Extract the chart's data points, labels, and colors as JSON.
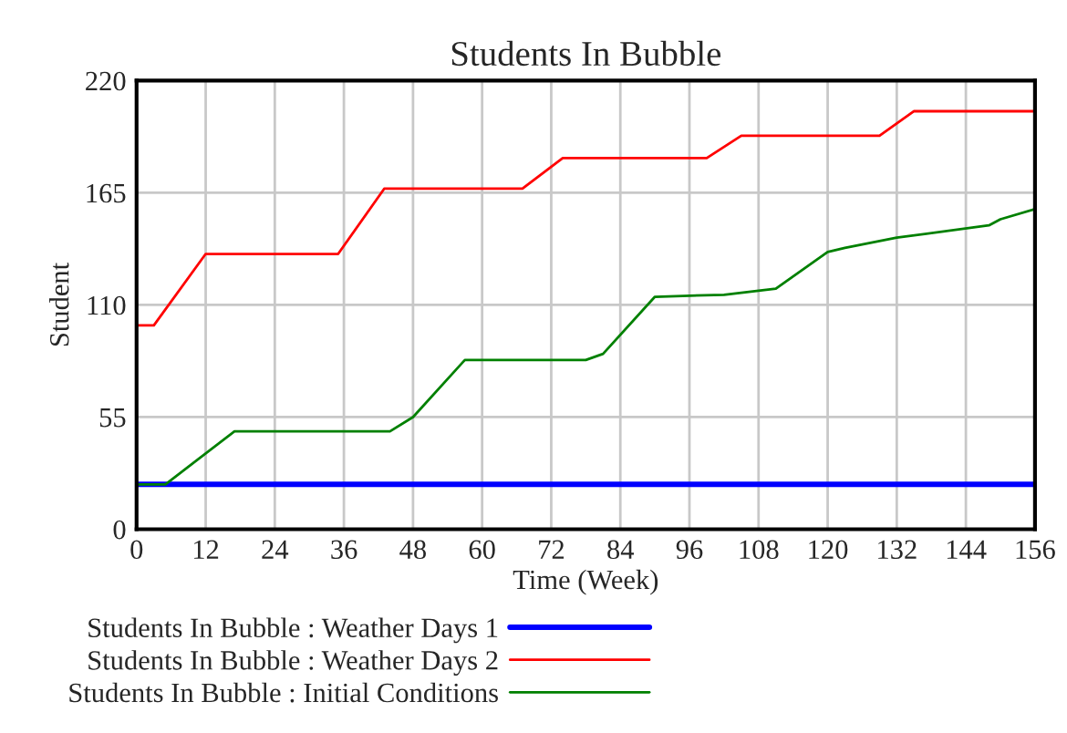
{
  "chart_data": {
    "type": "line",
    "title": "Students In Bubble",
    "xlabel": "Time (Week)",
    "ylabel": "Student",
    "xlim": [
      0,
      156
    ],
    "xticks": [
      0,
      12,
      24,
      36,
      48,
      60,
      72,
      84,
      96,
      108,
      120,
      132,
      144,
      156
    ],
    "ylim": [
      0,
      220
    ],
    "yticks": [
      0,
      55,
      110,
      165,
      220
    ],
    "grid": true,
    "legend": "bottom",
    "marker": "none",
    "line_style": "solid",
    "series": [
      {
        "name": "Students In Bubble : Weather Days 1",
        "color": "#0000ff",
        "x": [
          0,
          156
        ],
        "values": [
          22,
          22
        ]
      },
      {
        "name": "Students In Bubble : Weather Days 2",
        "color": "#ff0000",
        "x": [
          0,
          3,
          12,
          35,
          43,
          67,
          74,
          99,
          105,
          129,
          135,
          156
        ],
        "values": [
          100,
          100,
          135,
          135,
          167,
          167,
          182,
          182,
          193,
          193,
          205,
          205
        ]
      },
      {
        "name": "Students In Bubble : Initial Conditions",
        "color": "#008000",
        "x": [
          0,
          5,
          17,
          44,
          48,
          57,
          78,
          81,
          90,
          102,
          111,
          120,
          123,
          132,
          148,
          150,
          156
        ],
        "values": [
          22,
          22,
          48,
          48,
          55,
          83,
          83,
          86,
          114,
          115,
          118,
          136,
          138,
          143,
          149,
          152,
          157
        ]
      }
    ]
  }
}
